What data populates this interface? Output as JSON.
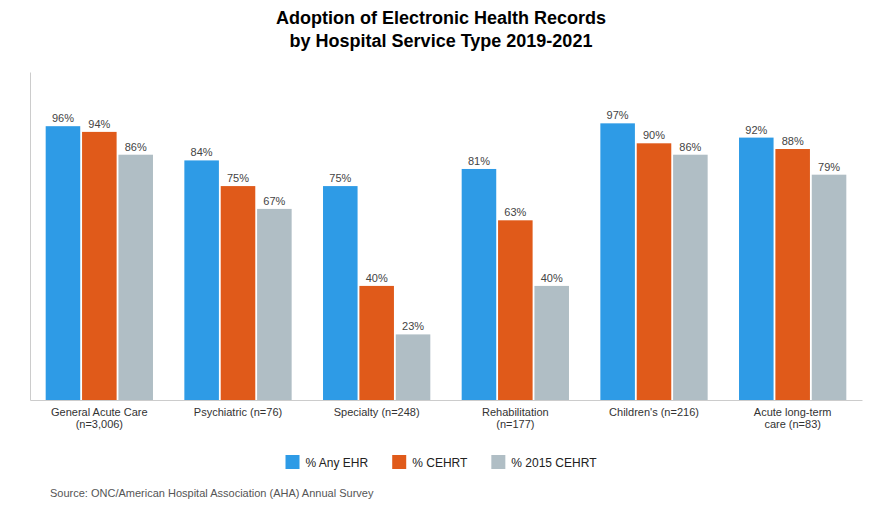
{
  "chart_data": {
    "type": "bar",
    "title": "Adoption of Electronic Health Records\nby Hospital Service Type 2019-2021",
    "categories": [
      "General Acute Care\n(n=3,006)",
      "Psychiatric (n=76)",
      "Specialty (n=248)",
      "Rehabilitation\n(n=177)",
      "Children's (n=216)",
      "Acute long-term\ncare (n=83)"
    ],
    "series": [
      {
        "name": "% Any EHR",
        "color": "#2E9BE6",
        "values": [
          96,
          84,
          75,
          81,
          97,
          92
        ],
        "value_labels": [
          "96%",
          "84%",
          "75%",
          "81%",
          "97%",
          "92%"
        ]
      },
      {
        "name": "% CEHRT",
        "color": "#E05A1A",
        "values": [
          94,
          75,
          40,
          63,
          90,
          88
        ],
        "value_labels": [
          "94%",
          "75%",
          "40%",
          "63%",
          "90%",
          "88%"
        ]
      },
      {
        "name": "% 2015 CEHRT",
        "color": "#B0BEC5",
        "values": [
          86,
          67,
          23,
          40,
          86,
          79
        ],
        "value_labels": [
          "86%",
          "67%",
          "23%",
          "40%",
          "86%",
          "79%"
        ]
      }
    ],
    "ylim": [
      0,
      115
    ],
    "tick_labels": "x",
    "data_labels": true,
    "legend": "bottom",
    "grid": false,
    "annotations": [
      "Source: ONC/American Hospital Association (AHA) Annual Survey"
    ]
  }
}
